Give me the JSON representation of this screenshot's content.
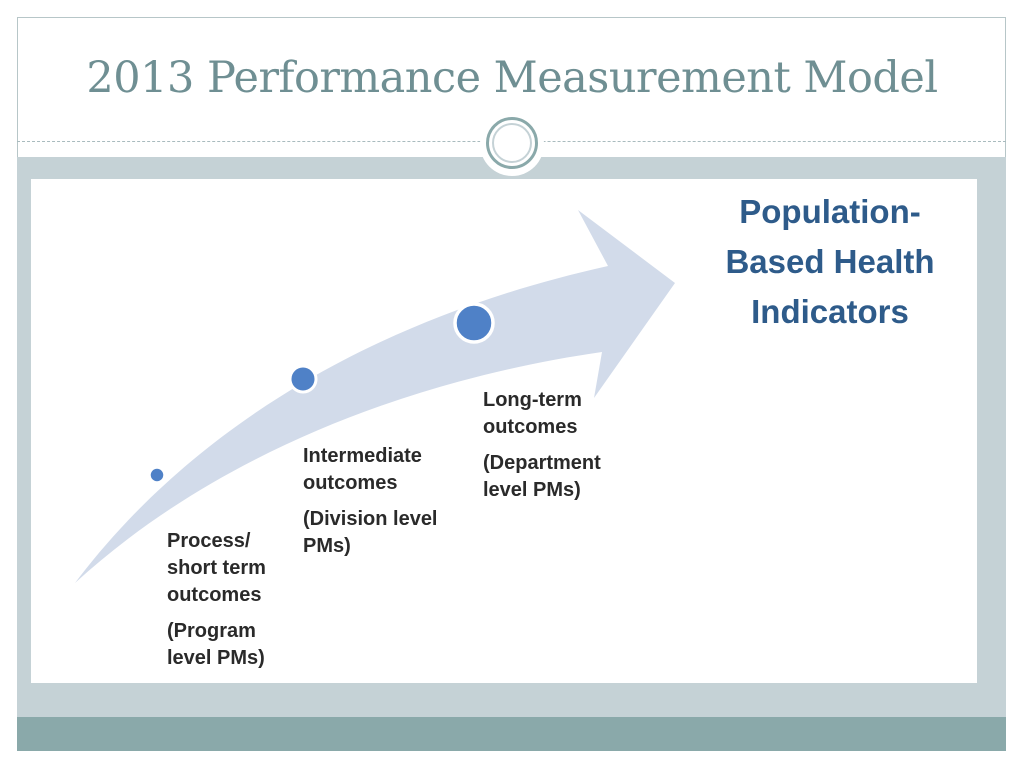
{
  "slide": {
    "title": "2013 Performance Measurement Model"
  },
  "diagram": {
    "stages": [
      {
        "name": "Process/\nshort term\noutcomes",
        "detail": "(Program\nlevel PMs)"
      },
      {
        "name": "Intermediate\noutcomes",
        "detail": "(Division level\nPMs)"
      },
      {
        "name": "Long-term\noutcomes",
        "detail": "(Department\nlevel PMs)"
      }
    ],
    "goal": "Population-\nBased Health\nIndicators",
    "colors": {
      "arrow": "#d2dbea",
      "dots": "#4f81c7",
      "dot_border": "#ffffff",
      "goal_text": "#2e5b8a"
    }
  }
}
